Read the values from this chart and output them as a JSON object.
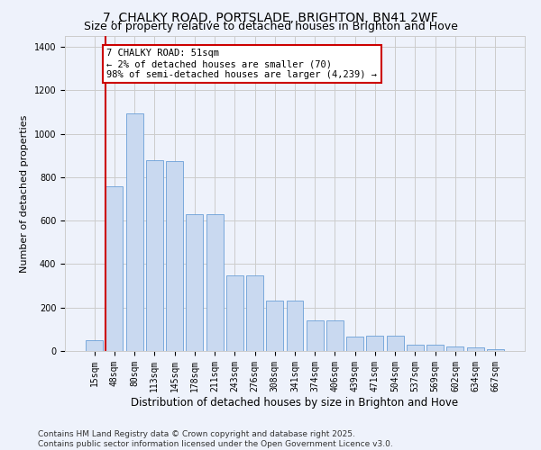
{
  "title_line1": "7, CHALKY ROAD, PORTSLADE, BRIGHTON, BN41 2WF",
  "title_line2": "Size of property relative to detached houses in Brighton and Hove",
  "xlabel": "Distribution of detached houses by size in Brighton and Hove",
  "ylabel": "Number of detached properties",
  "categories": [
    "15sqm",
    "48sqm",
    "80sqm",
    "113sqm",
    "145sqm",
    "178sqm",
    "211sqm",
    "243sqm",
    "276sqm",
    "308sqm",
    "341sqm",
    "374sqm",
    "406sqm",
    "439sqm",
    "471sqm",
    "504sqm",
    "537sqm",
    "569sqm",
    "602sqm",
    "634sqm",
    "667sqm"
  ],
  "values": [
    50,
    760,
    1095,
    880,
    875,
    630,
    630,
    350,
    350,
    230,
    230,
    140,
    140,
    65,
    70,
    70,
    30,
    30,
    20,
    15,
    10
  ],
  "bar_color": "#c9d9f0",
  "bar_edge_color": "#6a9fd8",
  "vline_color": "#cc0000",
  "annotation_text": "7 CHALKY ROAD: 51sqm\n← 2% of detached houses are smaller (70)\n98% of semi-detached houses are larger (4,239) →",
  "annotation_box_color": "#ffffff",
  "annotation_box_edge": "#cc0000",
  "ylim": [
    0,
    1450
  ],
  "yticks": [
    0,
    200,
    400,
    600,
    800,
    1000,
    1200,
    1400
  ],
  "grid_color": "#cccccc",
  "bg_color": "#eef2fb",
  "footer": "Contains HM Land Registry data © Crown copyright and database right 2025.\nContains public sector information licensed under the Open Government Licence v3.0.",
  "title_fontsize": 10,
  "subtitle_fontsize": 9,
  "xlabel_fontsize": 8.5,
  "ylabel_fontsize": 8,
  "tick_fontsize": 7,
  "footer_fontsize": 6.5,
  "annot_fontsize": 7.5
}
